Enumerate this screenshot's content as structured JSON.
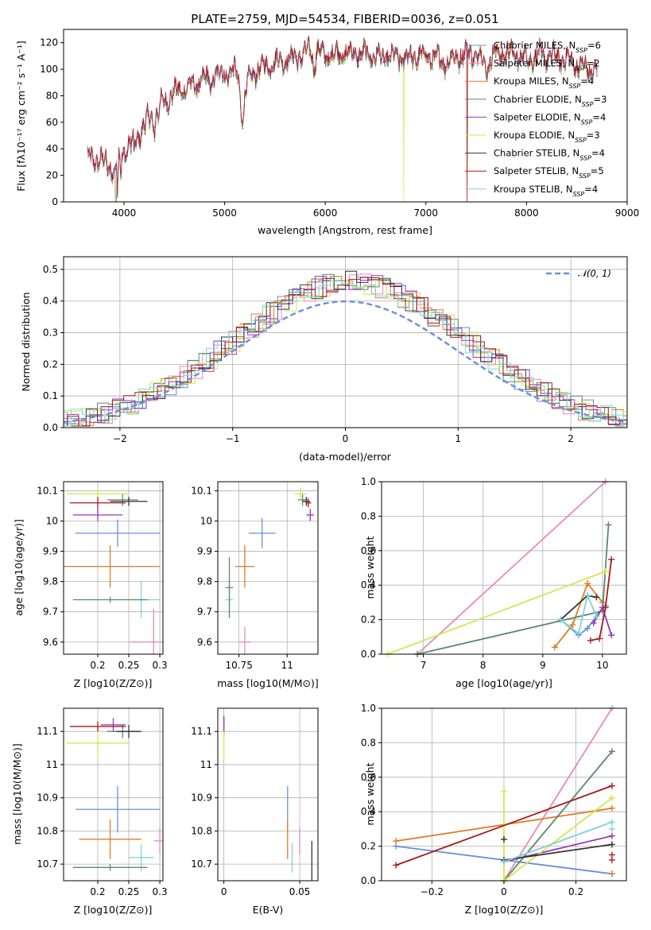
{
  "colors": {
    "Chabrier MILES": "#6b8fd6",
    "Salpeter MILES": "#e58bb8",
    "Kroupa MILES": "#e07b28",
    "Chabrier ELODIE": "#5a8a68",
    "Salpeter ELODIE": "#9b33b8",
    "Kroupa ELODIE": "#d2e84c",
    "Chabrier STELIB": "#333333",
    "Salpeter STELIB": "#a81c1c",
    "Kroupa STELIB": "#7ed4da",
    "normal": "#6b8fd6"
  },
  "chart_data": [
    {
      "id": "spectrum",
      "type": "line",
      "title": "PLATE=2759, MJD=54534, FIBERID=0036, z=0.051",
      "xlabel": "wavelength [Angstrom, rest frame]",
      "ylabel": "Flux [fλ10⁻¹⁷ erg cm⁻² s⁻¹ A⁻¹]",
      "xlim": [
        3400,
        9000
      ],
      "ylim": [
        0,
        130
      ],
      "xticks": [
        "4000",
        "5000",
        "6000",
        "7000",
        "8000",
        "9000"
      ],
      "yticks": [
        "0",
        "20",
        "40",
        "60",
        "80",
        "100",
        "120"
      ],
      "grid": false,
      "legend_position": "top-right",
      "legend": [
        {
          "model": "Chabrier MILES",
          "label": "Chabrier MILES, N",
          "sub": "SSP",
          "tail": "=6"
        },
        {
          "model": "Salpeter MILES",
          "label": "Salpeter MILES, N",
          "sub": "SSP",
          "tail": "=2"
        },
        {
          "model": "Kroupa MILES",
          "label": "Kroupa MILES, N",
          "sub": "SSP",
          "tail": "=4"
        },
        {
          "model": "Chabrier ELODIE",
          "label": "Chabrier ELODIE, N",
          "sub": "SSP",
          "tail": "=3"
        },
        {
          "model": "Salpeter ELODIE",
          "label": "Salpeter ELODIE, N",
          "sub": "SSP",
          "tail": "=4"
        },
        {
          "model": "Kroupa ELODIE",
          "label": "Kroupa ELODIE, N",
          "sub": "SSP",
          "tail": "=3"
        },
        {
          "model": "Chabrier STELIB",
          "label": "Chabrier STELIB, N",
          "sub": "SSP",
          "tail": "=4"
        },
        {
          "model": "Salpeter STELIB",
          "label": "Salpeter STELIB, N",
          "sub": "SSP",
          "tail": "=5"
        },
        {
          "model": "Kroupa STELIB",
          "label": "Kroupa STELIB, N",
          "sub": "SSP",
          "tail": "=4"
        }
      ],
      "continuum_anchors": [
        [
          3640,
          33
        ],
        [
          3800,
          30
        ],
        [
          3910,
          22
        ],
        [
          3960,
          35
        ],
        [
          4100,
          45
        ],
        [
          4300,
          68
        ],
        [
          4500,
          82
        ],
        [
          4700,
          88
        ],
        [
          4900,
          95
        ],
        [
          5100,
          98
        ],
        [
          5200,
          85
        ],
        [
          5300,
          98
        ],
        [
          5500,
          105
        ],
        [
          5700,
          108
        ],
        [
          5900,
          115
        ],
        [
          6000,
          110
        ],
        [
          6200,
          112
        ],
        [
          6500,
          110
        ],
        [
          6800,
          108
        ],
        [
          7000,
          110
        ],
        [
          7200,
          105
        ],
        [
          7400,
          112
        ],
        [
          7600,
          110
        ],
        [
          7800,
          112
        ],
        [
          8000,
          108
        ],
        [
          8200,
          110
        ],
        [
          8400,
          107
        ],
        [
          8600,
          100
        ],
        [
          8700,
          98
        ]
      ],
      "absorption_features": [
        [
          3934,
          20,
          1.2
        ],
        [
          3968,
          18,
          1.2
        ],
        [
          4102,
          10,
          1.5
        ],
        [
          4300,
          12,
          3
        ],
        [
          4340,
          8,
          1.5
        ],
        [
          4861,
          10,
          1.5
        ],
        [
          5175,
          25,
          4
        ],
        [
          5890,
          15,
          2.5
        ],
        [
          6563,
          8,
          1.5
        ],
        [
          7600,
          10,
          6
        ]
      ],
      "truncations": [
        {
          "model": "Kroupa ELODIE",
          "wavelength": 3920
        },
        {
          "model": "Chabrier ELODIE",
          "wavelength": 3920
        },
        {
          "model": "Kroupa ELODIE",
          "wavelength": 6780
        },
        {
          "model": "Salpeter STELIB",
          "wavelength": 7410
        },
        {
          "model": "Kroupa MILES",
          "wavelength": 7410
        }
      ]
    },
    {
      "id": "residuals",
      "type": "histogram",
      "xlabel": "(data-model)/error",
      "ylabel": "Normed distribution",
      "xlim": [
        -2.5,
        2.5
      ],
      "ylim": [
        0,
        0.54
      ],
      "xticks": [
        -2,
        -1,
        0,
        1,
        2
      ],
      "yticks": [
        0.0,
        0.1,
        0.2,
        0.3,
        0.4,
        0.5
      ],
      "grid": true,
      "bin_width": 0.1,
      "legend_position": "top-right",
      "reference_curve": {
        "name": "𝒩(0, 1)",
        "mean": 0,
        "sigma": 1,
        "style": "dashed"
      }
    },
    {
      "id": "age-vs-Z",
      "type": "errorbar",
      "xlabel": "Z [log10(Z/Z⊙)]",
      "ylabel": "age [log10(age/yr)]",
      "xlim": [
        0.145,
        0.305
      ],
      "ylim": [
        9.56,
        10.13
      ],
      "xticks": [
        0.2,
        0.25,
        0.3
      ],
      "yticks": [
        9.6,
        9.7,
        9.8,
        9.9,
        10.0,
        10.1
      ],
      "grid": true,
      "points": [
        {
          "model": "Chabrier MILES",
          "x": 0.232,
          "xerr": 0.068,
          "y": 9.96,
          "yerr": 0.045
        },
        {
          "model": "Salpeter MILES",
          "x": 0.29,
          "xerr": 0.04,
          "y": 9.6,
          "yerr": 0.11
        },
        {
          "model": "Kroupa MILES",
          "x": 0.22,
          "xerr": 0.08,
          "y": 9.85,
          "yerr": 0.07
        },
        {
          "model": "Chabrier ELODIE",
          "x": 0.24,
          "xerr": 0.025,
          "y": 10.07,
          "yerr": 0.02
        },
        {
          "model": "Salpeter ELODIE",
          "x": 0.2,
          "xerr": 0.04,
          "y": 10.02,
          "yerr": 0.02
        },
        {
          "model": "Kroupa ELODIE",
          "x": 0.2,
          "xerr": 0.05,
          "y": 10.09,
          "yerr": 0.02
        },
        {
          "model": "Chabrier STELIB",
          "x": 0.25,
          "xerr": 0.03,
          "y": 10.065,
          "yerr": 0.015
        },
        {
          "model": "Salpeter STELIB",
          "x": 0.2,
          "xerr": 0.045,
          "y": 10.06,
          "yerr": 0.02
        },
        {
          "model": "Kroupa STELIB",
          "x": 0.27,
          "xerr": 0.03,
          "y": 9.74,
          "yerr": 0.06
        },
        {
          "model": "Chabrier ELODIE",
          "x": 0.22,
          "xerr": 0.06,
          "y": 9.74,
          "yerr": 0.01
        }
      ]
    },
    {
      "id": "age-vs-mass",
      "type": "errorbar",
      "xlabel": "mass [log10(M/M⊙)]",
      "ylabel": "",
      "xlim": [
        10.64,
        11.16
      ],
      "ylim": [
        9.56,
        10.13
      ],
      "xticks": [
        10.75,
        11.0
      ],
      "yticks": [
        9.6,
        9.7,
        9.8,
        9.9,
        10.0,
        10.1
      ],
      "grid": true,
      "points": [
        {
          "model": "Chabrier MILES",
          "x": 10.87,
          "xerr": 0.07,
          "y": 9.96,
          "yerr": 0.05
        },
        {
          "model": "Salpeter MILES",
          "x": 10.78,
          "xerr": 0.03,
          "y": 9.6,
          "yerr": 0.05
        },
        {
          "model": "Kroupa MILES",
          "x": 10.78,
          "xerr": 0.05,
          "y": 9.85,
          "yerr": 0.07
        },
        {
          "model": "Chabrier ELODIE",
          "x": 11.08,
          "xerr": 0.025,
          "y": 10.07,
          "yerr": 0.02
        },
        {
          "model": "Salpeter ELODIE",
          "x": 11.12,
          "xerr": 0.02,
          "y": 10.02,
          "yerr": 0.02
        },
        {
          "model": "Kroupa ELODIE",
          "x": 11.07,
          "xerr": 0.03,
          "y": 10.09,
          "yerr": 0.02
        },
        {
          "model": "Chabrier STELIB",
          "x": 11.1,
          "xerr": 0.02,
          "y": 10.065,
          "yerr": 0.015
        },
        {
          "model": "Salpeter STELIB",
          "x": 11.11,
          "xerr": 0.015,
          "y": 10.06,
          "yerr": 0.015
        },
        {
          "model": "Kroupa STELIB",
          "x": 10.7,
          "xerr": 0.02,
          "y": 9.74,
          "yerr": 0.06
        },
        {
          "model": "Chabrier ELODIE",
          "x": 10.7,
          "xerr": 0.02,
          "y": 9.78,
          "yerr": 0.1
        }
      ]
    },
    {
      "id": "mass-weight-vs-age",
      "type": "line",
      "xlabel": "age [log10(age/yr)]",
      "ylabel": "mass weight",
      "xlim": [
        6.3,
        10.4
      ],
      "ylim": [
        0,
        1.0
      ],
      "xticks": [
        7,
        8,
        9,
        10
      ],
      "yticks": [
        0.0,
        0.2,
        0.4,
        0.6,
        0.8,
        1.0
      ],
      "grid": true,
      "series": [
        {
          "model": "Chabrier MILES",
          "x": [
            9.3,
            9.6,
            9.75,
            9.9,
            10.05
          ],
          "y": [
            0.2,
            0.11,
            0.15,
            0.22,
            0.28
          ]
        },
        {
          "model": "Salpeter MILES",
          "x": [
            6.9,
            10.05
          ],
          "y": [
            0.0,
            1.0
          ]
        },
        {
          "model": "Kroupa MILES",
          "x": [
            9.2,
            9.5,
            9.75,
            10.0
          ],
          "y": [
            0.04,
            0.17,
            0.41,
            0.3
          ]
        },
        {
          "model": "Chabrier ELODIE",
          "x": [
            6.9,
            10.0,
            10.1
          ],
          "y": [
            0.0,
            0.25,
            0.75
          ]
        },
        {
          "model": "Salpeter ELODIE",
          "x": [
            9.85,
            10.0,
            10.15
          ],
          "y": [
            0.18,
            0.27,
            0.11
          ]
        },
        {
          "model": "Kroupa ELODIE",
          "x": [
            6.4,
            10.05
          ],
          "y": [
            0.0,
            0.48
          ]
        },
        {
          "model": "Chabrier STELIB",
          "x": [
            9.3,
            9.75,
            9.9
          ],
          "y": [
            0.2,
            0.34,
            0.33
          ]
        },
        {
          "model": "Salpeter STELIB",
          "x": [
            9.8,
            9.95,
            10.05,
            10.15
          ],
          "y": [
            0.08,
            0.09,
            0.27,
            0.55
          ]
        },
        {
          "model": "Kroupa STELIB",
          "x": [
            9.3,
            9.6,
            9.75,
            9.9
          ],
          "y": [
            0.2,
            0.12,
            0.34,
            0.22
          ]
        }
      ]
    },
    {
      "id": "mass-vs-Z",
      "type": "errorbar",
      "xlabel": "Z [log10(Z/Z⊙)]",
      "ylabel": "mass [log10(M/M⊙)]",
      "xlim": [
        0.145,
        0.305
      ],
      "ylim": [
        10.65,
        11.17
      ],
      "xticks": [
        0.2,
        0.25,
        0.3
      ],
      "yticks": [
        10.7,
        10.8,
        10.9,
        11.0,
        11.1
      ],
      "grid": true,
      "points": [
        {
          "model": "Chabrier MILES",
          "x": 0.232,
          "xerr": 0.068,
          "y": 10.865,
          "yerr": 0.07
        },
        {
          "model": "Salpeter MILES",
          "x": 0.3,
          "xerr": 0.01,
          "y": 10.77,
          "yerr": 0.04
        },
        {
          "model": "Kroupa MILES",
          "x": 0.22,
          "xerr": 0.05,
          "y": 10.775,
          "yerr": 0.06
        },
        {
          "model": "Chabrier ELODIE",
          "x": 0.24,
          "xerr": 0.025,
          "y": 11.1,
          "yerr": 0.02
        },
        {
          "model": "Salpeter ELODIE",
          "x": 0.225,
          "xerr": 0.02,
          "y": 11.12,
          "yerr": 0.02
        },
        {
          "model": "Kroupa ELODIE",
          "x": 0.2,
          "xerr": 0.05,
          "y": 11.065,
          "yerr": 0.05
        },
        {
          "model": "Chabrier STELIB",
          "x": 0.25,
          "xerr": 0.02,
          "y": 11.1,
          "yerr": 0.02
        },
        {
          "model": "Salpeter STELIB",
          "x": 0.2,
          "xerr": 0.045,
          "y": 11.115,
          "yerr": 0.015
        },
        {
          "model": "Kroupa STELIB",
          "x": 0.27,
          "xerr": 0.02,
          "y": 10.72,
          "yerr": 0.04
        },
        {
          "model": "Chabrier ELODIE",
          "x": 0.22,
          "xerr": 0.06,
          "y": 10.69,
          "yerr": 0.01
        }
      ]
    },
    {
      "id": "mass-vs-EBV",
      "type": "errorbar",
      "xlabel": "E(B-V)",
      "ylabel": "",
      "xlim": [
        -0.004,
        0.062
      ],
      "ylim": [
        10.65,
        11.17
      ],
      "xticks": [
        0.0,
        0.05
      ],
      "yticks": [
        10.7,
        10.8,
        10.9,
        11.0,
        11.1
      ],
      "grid": true,
      "points": [
        {
          "model": "Chabrier MILES",
          "x": 0.042,
          "xerr": 0,
          "y": 10.865,
          "yerr": 0.07
        },
        {
          "model": "Kroupa MILES",
          "x": 0.042,
          "xerr": 0,
          "y": 10.775,
          "yerr": 0.06
        },
        {
          "model": "Salpeter MILES",
          "x": 0.05,
          "xerr": 0,
          "y": 10.77,
          "yerr": 0.04
        },
        {
          "model": "Kroupa STELIB",
          "x": 0.045,
          "xerr": 0,
          "y": 10.72,
          "yerr": 0.045
        },
        {
          "model": "Chabrier STELIB",
          "x": 0.058,
          "xerr": 0,
          "y": 10.71,
          "yerr": 0.06
        },
        {
          "model": "Salpeter STELIB",
          "x": 0.0,
          "xerr": 0,
          "y": 11.115,
          "yerr": 0.03
        },
        {
          "model": "Kroupa ELODIE",
          "x": 0.0,
          "xerr": 0,
          "y": 11.065,
          "yerr": 0.05
        },
        {
          "model": "Salpeter ELODIE",
          "x": 0.0,
          "xerr": 0,
          "y": 11.12,
          "yerr": 0.02
        }
      ]
    },
    {
      "id": "mass-weight-vs-Z",
      "type": "line",
      "xlabel": "Z [log10(Z/Z⊙)]",
      "ylabel": "mass weight",
      "xlim": [
        -0.34,
        0.34
      ],
      "ylim": [
        0,
        1.0
      ],
      "xticks": [
        -0.2,
        0.0,
        0.2
      ],
      "yticks": [
        0.0,
        0.2,
        0.4,
        0.6,
        0.8,
        1.0
      ],
      "grid": true,
      "series": [
        {
          "model": "Chabrier MILES",
          "x": [
            -0.3,
            0.3
          ],
          "y": [
            0.2,
            0.04
          ]
        },
        {
          "model": "Salpeter MILES",
          "x": [
            0.0,
            0.3
          ],
          "y": [
            0.0,
            1.0
          ]
        },
        {
          "model": "Kroupa MILES",
          "x": [
            -0.3,
            0.3
          ],
          "y": [
            0.23,
            0.42
          ]
        },
        {
          "model": "Chabrier ELODIE",
          "x": [
            0.0,
            0.3
          ],
          "y": [
            0.0,
            0.75
          ]
        },
        {
          "model": "Salpeter ELODIE",
          "x": [
            0.0,
            0.3
          ],
          "y": [
            0.11,
            0.26
          ]
        },
        {
          "model": "Kroupa ELODIE",
          "x": [
            0.0,
            0.0,
            0.3
          ],
          "y": [
            0.52,
            0.0,
            0.48
          ]
        },
        {
          "model": "Chabrier STELIB",
          "x": [
            0.0,
            0.3
          ],
          "y": [
            0.12,
            0.21
          ]
        },
        {
          "model": "Salpeter STELIB",
          "x": [
            -0.3,
            0.3
          ],
          "y": [
            0.09,
            0.55
          ]
        },
        {
          "model": "Kroupa STELIB",
          "x": [
            0.0,
            0.3
          ],
          "y": [
            0.11,
            0.34
          ]
        }
      ],
      "markers": [
        {
          "model": "Chabrier STELIB",
          "x": 0.0,
          "y": 0.24
        },
        {
          "model": "Salpeter STELIB",
          "x": 0.3,
          "y": 0.15
        },
        {
          "model": "Salpeter STELIB",
          "x": 0.3,
          "y": 0.12
        },
        {
          "model": "Kroupa MILES",
          "x": 0.3,
          "y": 0.04
        },
        {
          "model": "Kroupa STELIB",
          "x": 0.3,
          "y": 0.3
        }
      ]
    }
  ]
}
